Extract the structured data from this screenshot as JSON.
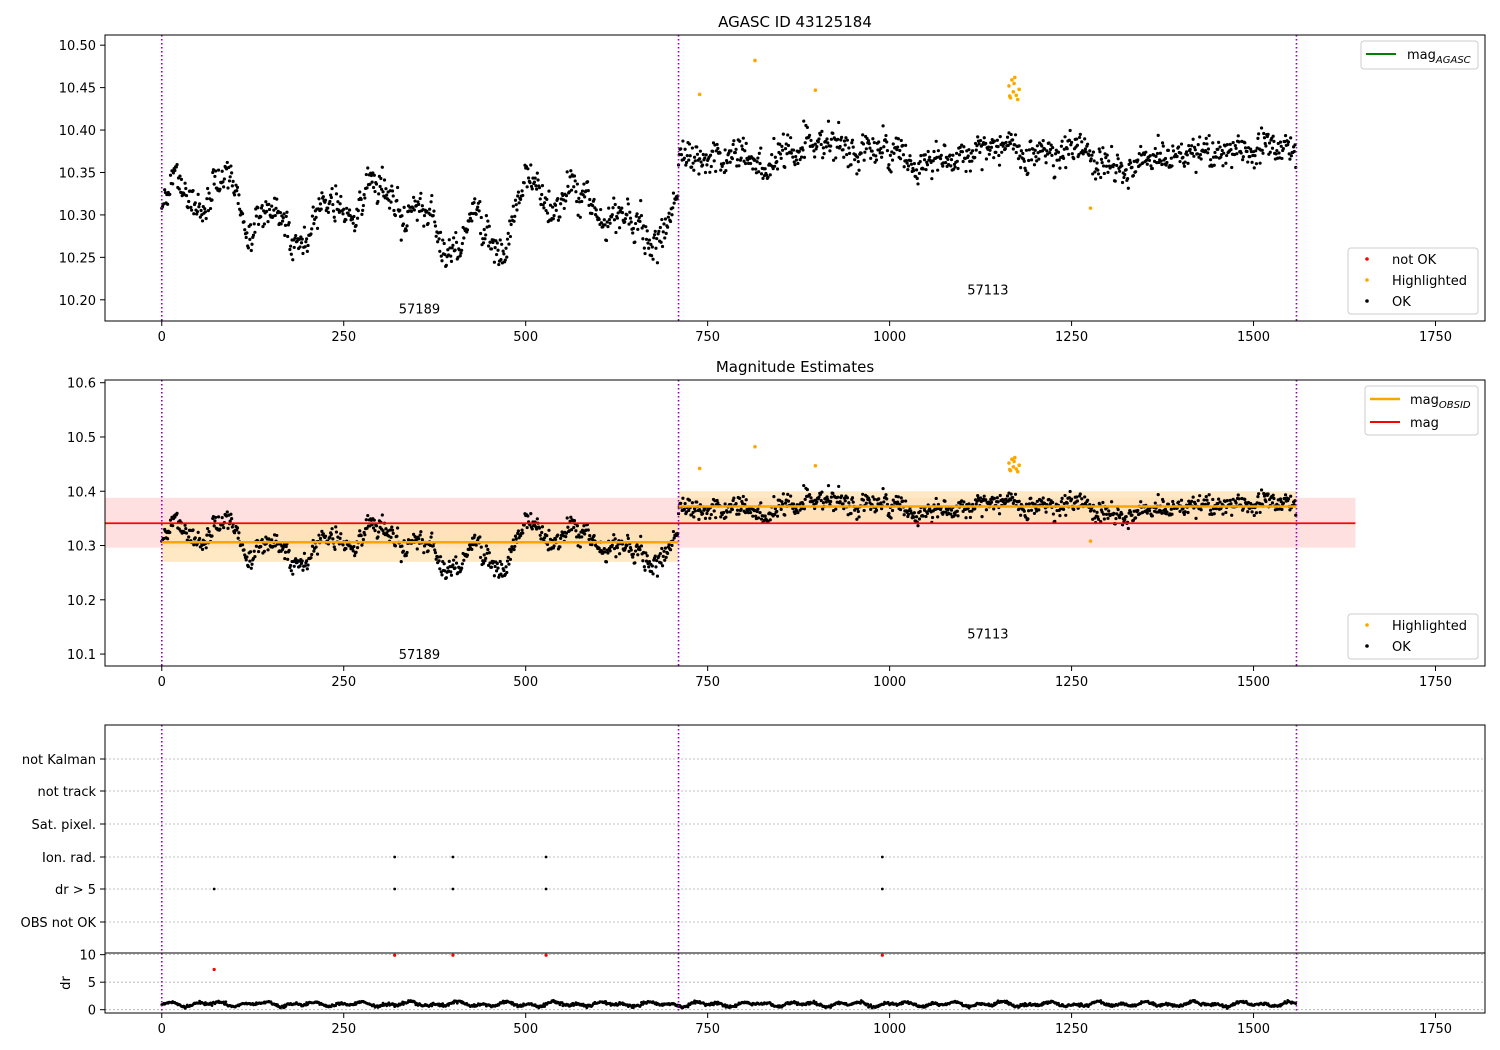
{
  "chart_data": [
    {
      "type": "scatter",
      "title": "AGASC ID 43125184",
      "x_ticks": [
        "0",
        "250",
        "500",
        "750",
        "1000",
        "1250",
        "1500",
        "1750"
      ],
      "y_ticks": [
        "10.20",
        "10.25",
        "10.30",
        "10.35",
        "10.40",
        "10.45",
        "10.50"
      ],
      "xlim": [
        -78,
        1818
      ],
      "ylim": [
        10.175,
        10.512
      ],
      "obsid_boundaries": [
        0,
        710,
        1559
      ],
      "obsid_labels": [
        {
          "text": "57189",
          "x": 354,
          "y": 10.19
        },
        {
          "text": "57113",
          "x": 1135,
          "y": 10.212
        }
      ],
      "segments": [
        {
          "x0": 0,
          "x1": 710,
          "mean": 10.306,
          "sd": 0.042
        },
        {
          "x0": 710,
          "x1": 1559,
          "mean": 10.372,
          "sd": 0.025
        }
      ],
      "highlighted_points": [
        [
          739,
          10.442
        ],
        [
          815,
          10.482
        ],
        [
          898,
          10.447
        ],
        [
          1276,
          10.308
        ],
        [
          1164,
          10.452
        ],
        [
          1166,
          10.438
        ],
        [
          1168,
          10.459
        ],
        [
          1170,
          10.445
        ],
        [
          1172,
          10.462
        ],
        [
          1174,
          10.441
        ],
        [
          1176,
          10.436
        ],
        [
          1178,
          10.448
        ],
        [
          1165,
          10.44
        ],
        [
          1171,
          10.455
        ]
      ],
      "legend_lines": [
        {
          "label": "mag",
          "sub": "AGASC",
          "color": "#008000"
        }
      ],
      "legend_points": [
        {
          "label": "not OK",
          "color": "#ff0000"
        },
        {
          "label": "Highlighted",
          "color": "#ffa500"
        },
        {
          "label": "OK",
          "color": "#000000"
        }
      ]
    },
    {
      "type": "scatter",
      "title": "Magnitude Estimates",
      "x_ticks": [
        "0",
        "250",
        "500",
        "750",
        "1000",
        "1250",
        "1500",
        "1750"
      ],
      "y_ticks": [
        "10.1",
        "10.2",
        "10.3",
        "10.4",
        "10.5",
        "10.6"
      ],
      "xlim": [
        -78,
        1818
      ],
      "ylim": [
        10.078,
        10.605
      ],
      "mag": 10.341,
      "mag_band": [
        10.296,
        10.388
      ],
      "mag_x_range": [
        -78,
        1640
      ],
      "obsid_mags": [
        {
          "x0": 0,
          "x1": 710,
          "mag": 10.306,
          "band": [
            10.27,
            10.343
          ]
        },
        {
          "x0": 710,
          "x1": 1559,
          "mag": 10.372,
          "band": [
            10.343,
            10.4
          ]
        }
      ],
      "obsid_labels": [
        {
          "text": "57189",
          "x": 354,
          "y": 10.1
        },
        {
          "text": "57113",
          "x": 1135,
          "y": 10.138
        }
      ],
      "legend_lines": [
        {
          "label": "mag",
          "sub": "OBSID",
          "color": "#ffa500"
        },
        {
          "label": "mag",
          "sub": "",
          "color": "#ff0000"
        }
      ],
      "legend_points": [
        {
          "label": "Highlighted",
          "color": "#ffa500"
        },
        {
          "label": "OK",
          "color": "#000000"
        }
      ]
    },
    {
      "type": "scatter",
      "title": "",
      "flag_rows": [
        "not Kalman",
        "not track",
        "Sat. pixel.",
        "Ion. rad.",
        "dr > 5",
        "OBS not OK"
      ],
      "flag_points": {
        "Ion. rad.": [
          320,
          400,
          528,
          990
        ],
        "dr > 5": [
          72,
          320,
          400,
          528,
          990
        ]
      },
      "dr_ylabel": "dr",
      "dr_y_ticks": [
        "0",
        "5",
        "10"
      ],
      "dr_ylim": [
        -0.6,
        10.3
      ],
      "dr_outliers": [
        [
          72,
          7.3
        ],
        [
          320,
          9.9
        ],
        [
          400,
          9.9
        ],
        [
          528,
          9.9
        ],
        [
          990,
          9.9
        ]
      ],
      "x_ticks": [
        "0",
        "250",
        "500",
        "750",
        "1000",
        "1250",
        "1500",
        "1750"
      ],
      "xlim": [
        -78,
        1818
      ]
    }
  ]
}
